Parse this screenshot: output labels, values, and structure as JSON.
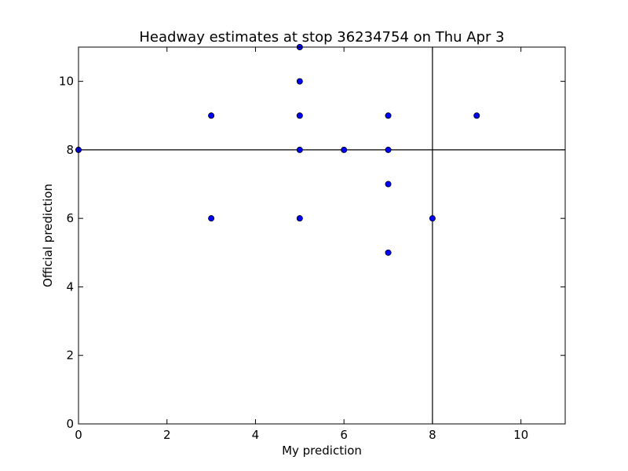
{
  "chart_data": {
    "type": "scatter",
    "title": "Headway estimates at stop 36234754 on Thu Apr 3",
    "xlabel": "My prediction",
    "ylabel": "Official prediction",
    "xlim": [
      0,
      11
    ],
    "ylim": [
      0,
      11
    ],
    "xticks": [
      0,
      2,
      4,
      6,
      8,
      10
    ],
    "yticks": [
      0,
      2,
      4,
      6,
      8,
      10
    ],
    "xtick_labels": [
      "0",
      "2",
      "4",
      "6",
      "8",
      "10"
    ],
    "ytick_labels": [
      "0",
      "2",
      "4",
      "6",
      "8",
      "10"
    ],
    "grid": false,
    "reference_lines": {
      "vertical_x": 8,
      "horizontal_y": 8
    },
    "series": [
      {
        "color": "#0000ff",
        "points": [
          {
            "x": 0,
            "y": 8
          },
          {
            "x": 3,
            "y": 9
          },
          {
            "x": 3,
            "y": 6
          },
          {
            "x": 5,
            "y": 11
          },
          {
            "x": 5,
            "y": 10
          },
          {
            "x": 5,
            "y": 9
          },
          {
            "x": 5,
            "y": 8
          },
          {
            "x": 5,
            "y": 6
          },
          {
            "x": 6,
            "y": 8
          },
          {
            "x": 7,
            "y": 9
          },
          {
            "x": 7,
            "y": 8
          },
          {
            "x": 7,
            "y": 7
          },
          {
            "x": 7,
            "y": 5
          },
          {
            "x": 8,
            "y": 6
          },
          {
            "x": 9,
            "y": 9
          }
        ]
      }
    ]
  }
}
